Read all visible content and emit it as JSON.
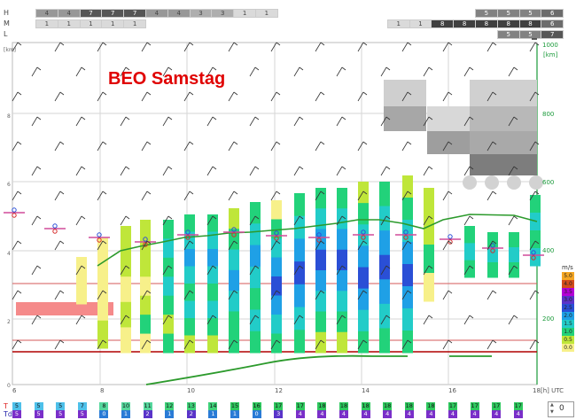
{
  "title_overlay": "BEO Samstag",
  "top_chevron": "⌃",
  "cloud_rows": {
    "labels": [
      "H",
      "M",
      "L"
    ],
    "H": [
      "4",
      "4",
      "7",
      "7",
      "7",
      "4",
      "4",
      "3",
      "3",
      "1",
      "1",
      "",
      "",
      "",
      "",
      "",
      "",
      "",
      "",
      "",
      "5",
      "5",
      "5",
      "6"
    ],
    "M": [
      "1",
      "1",
      "1",
      "1",
      "1",
      "",
      "",
      "",
      "",
      "",
      "",
      "",
      "",
      "",
      "",
      "",
      "1",
      "1",
      "8",
      "8",
      "8",
      "8",
      "8",
      "6"
    ],
    "L": [
      "",
      "",
      "",
      "",
      "",
      "",
      "",
      "",
      "",
      "",
      "",
      "",
      "",
      "",
      "",
      "",
      "",
      "",
      "",
      "",
      "",
      "5",
      "5",
      "7"
    ]
  },
  "y_axis_left": {
    "unit": "[km]",
    "ticks": [
      "8",
      "6",
      "4",
      "2",
      "0"
    ]
  },
  "y_axis_right": {
    "unit": "[km]",
    "ticks": [
      "1000",
      "800",
      "600",
      "400",
      "200"
    ]
  },
  "x_axis": {
    "ticks": [
      "6",
      "8",
      "10",
      "12",
      "14",
      "16",
      "18"
    ],
    "unit": "[h] UTC"
  },
  "legend": {
    "unit": "m/s",
    "entries": [
      {
        "label": "5.0",
        "color": "#f5a623"
      },
      {
        "label": "4.0",
        "color": "#d44c1a"
      },
      {
        "label": "3.5",
        "color": "#b400d6"
      },
      {
        "label": "3.0",
        "color": "#5a34c9"
      },
      {
        "label": "2.5",
        "color": "#2a4fd6"
      },
      {
        "label": "2.0",
        "color": "#1fa0e6"
      },
      {
        "label": "1.5",
        "color": "#22ccc8"
      },
      {
        "label": "1.0",
        "color": "#22d27a"
      },
      {
        "label": "0.5",
        "color": "#bfe63a"
      },
      {
        "label": "0.0",
        "color": "#f7f08a"
      }
    ]
  },
  "bottom_rows": {
    "T_label": "T",
    "Td_label": "Td",
    "T": [
      "5",
      "5",
      "5",
      "7",
      "8",
      "10",
      "11",
      "12",
      "13",
      "14",
      "15",
      "16",
      "17",
      "17",
      "18",
      "18",
      "18",
      "18",
      "18",
      "18",
      "17",
      "17",
      "17",
      "17"
    ],
    "Td": [
      "5",
      "5",
      "5",
      "5",
      "0",
      "1",
      "2",
      "1",
      "2",
      "1",
      "1",
      "0",
      "3",
      "4",
      "4",
      "4",
      "4",
      "4",
      "4",
      "4",
      "4",
      "4",
      "4",
      "4"
    ]
  },
  "stepper": {
    "value": "0",
    "up": "▲",
    "down": "▼"
  }
}
